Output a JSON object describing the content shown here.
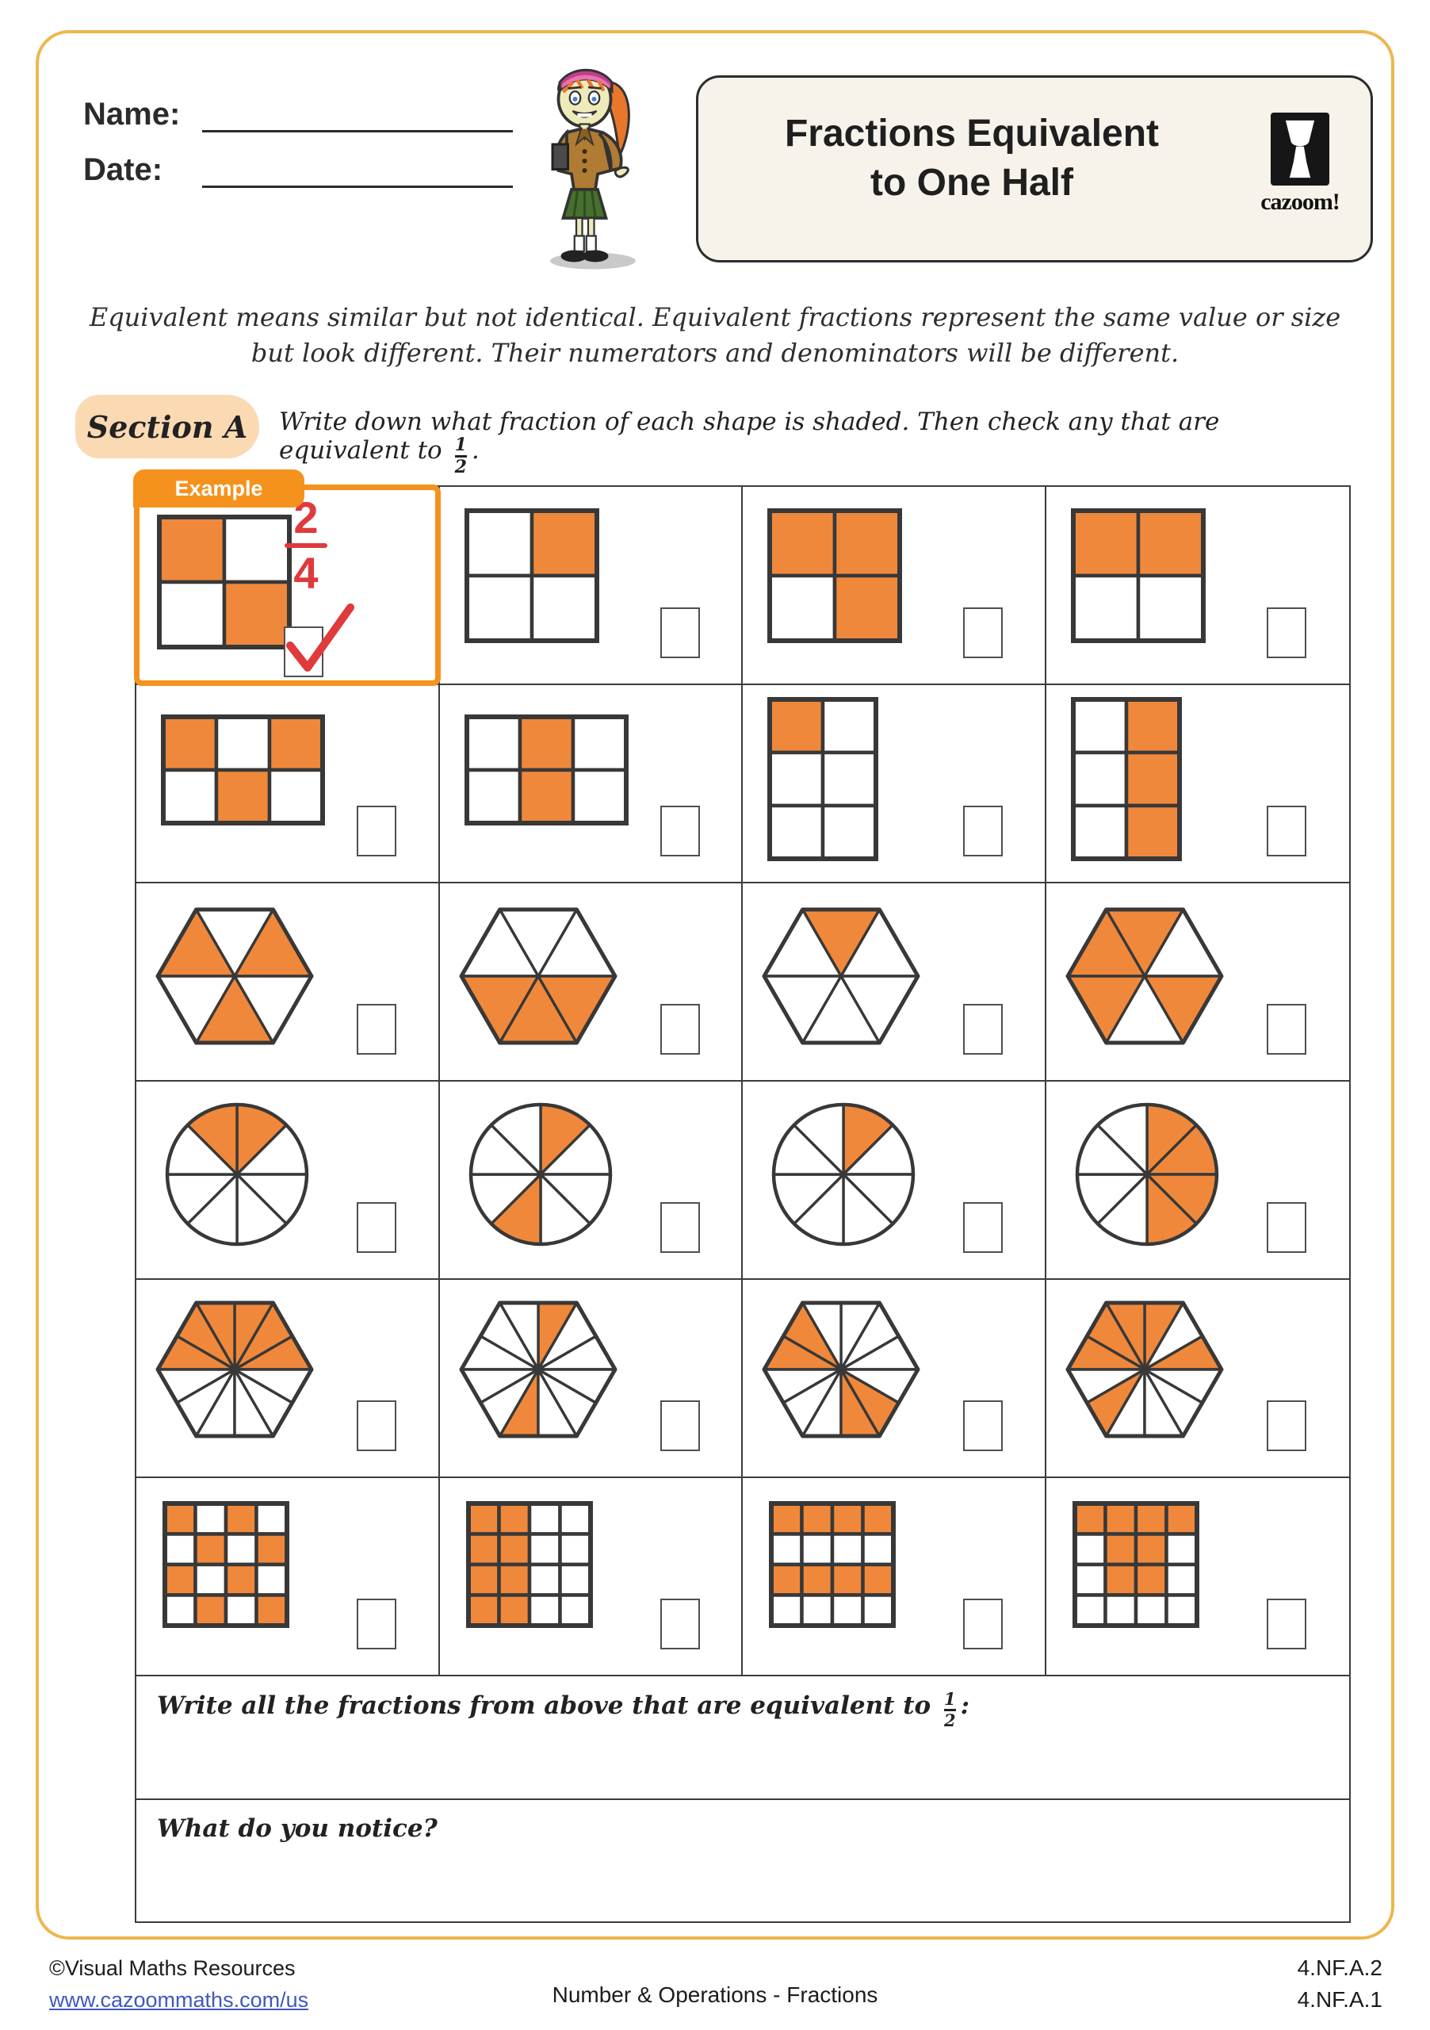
{
  "header": {
    "name_label": "Name:",
    "date_label": "Date:",
    "title_line1": "Fractions Equivalent",
    "title_line2": "to One Half",
    "logo_text": "cazoom!"
  },
  "intro": {
    "line1": "Equivalent means similar but not identical. Equivalent fractions represent the same value or size",
    "line2": "but look different. Their numerators and denominators will be different."
  },
  "section": {
    "label": "Section A",
    "instruction": "Write down what fraction of each shape is shaded. Then check any that are equivalent to",
    "fraction_num": "1",
    "fraction_den": "2",
    "suffix": "."
  },
  "example": {
    "label": "Example",
    "answer_num": "2",
    "answer_den": "4",
    "checkbox": "checked"
  },
  "colors": {
    "shape_orange": "#F0883B",
    "example_orange": "#F5921E",
    "mark_red": "#DF3A3C",
    "page_border_gold": "#EDB74D",
    "section_peach": "#FBD9B3",
    "title_cream": "#F7F3EB",
    "line_dark": "#3c3c3c",
    "link_blue": "#4059BE"
  },
  "worksheet": {
    "rows": [
      {
        "cells": [
          {
            "shape": "grid",
            "cols": 2,
            "rows": 2,
            "shaded": [
              0,
              3
            ],
            "fraction": "2/4",
            "example": true,
            "answer_num": "2",
            "answer_den": "4",
            "checkbox": "checked"
          },
          {
            "shape": "grid",
            "cols": 2,
            "rows": 2,
            "shaded": [
              1
            ],
            "fraction": "1/4",
            "checkbox": "empty"
          },
          {
            "shape": "grid",
            "cols": 2,
            "rows": 2,
            "shaded": [
              0,
              1,
              3
            ],
            "fraction": "3/4",
            "checkbox": "empty"
          },
          {
            "shape": "grid",
            "cols": 2,
            "rows": 2,
            "shaded": [
              0,
              1
            ],
            "fraction": "2/4",
            "checkbox": "empty"
          }
        ]
      },
      {
        "cells": [
          {
            "shape": "grid",
            "cols": 3,
            "rows": 2,
            "shaded": [
              0,
              2,
              4
            ],
            "fraction": "3/6",
            "checkbox": "empty"
          },
          {
            "shape": "grid",
            "cols": 3,
            "rows": 2,
            "shaded": [
              1,
              4
            ],
            "fraction": "2/6",
            "checkbox": "empty"
          },
          {
            "shape": "grid",
            "cols": 2,
            "rows": 3,
            "shaded": [
              0
            ],
            "fraction": "1/6",
            "checkbox": "empty"
          },
          {
            "shape": "grid",
            "cols": 2,
            "rows": 3,
            "shaded": [
              1,
              3,
              5
            ],
            "fraction": "3/6",
            "checkbox": "empty"
          }
        ]
      },
      {
        "cells": [
          {
            "shape": "hex",
            "segments": 6,
            "shaded": [
              0,
              2,
              4
            ],
            "fraction": "3/6",
            "checkbox": "empty"
          },
          {
            "shape": "hex",
            "segments": 6,
            "shaded": [
              3,
              4,
              5
            ],
            "fraction": "3/6",
            "checkbox": "empty"
          },
          {
            "shape": "hex",
            "segments": 6,
            "shaded": [
              1
            ],
            "fraction": "1/6",
            "checkbox": "empty"
          },
          {
            "shape": "hex",
            "segments": 6,
            "shaded": [
              1,
              2,
              3,
              5
            ],
            "fraction": "4/6",
            "checkbox": "empty"
          }
        ]
      },
      {
        "cells": [
          {
            "shape": "circle",
            "segments": 8,
            "shaded": [
              0,
              7
            ],
            "fraction": "2/8",
            "checkbox": "empty"
          },
          {
            "shape": "circle",
            "segments": 8,
            "shaded": [
              0,
              4
            ],
            "fraction": "2/8",
            "checkbox": "empty"
          },
          {
            "shape": "circle",
            "segments": 8,
            "shaded": [
              0
            ],
            "fraction": "1/8",
            "checkbox": "empty"
          },
          {
            "shape": "circle",
            "segments": 8,
            "shaded": [
              0,
              1,
              2,
              3
            ],
            "fraction": "4/8",
            "checkbox": "empty"
          }
        ]
      },
      {
        "cells": [
          {
            "shape": "hex",
            "segments": 12,
            "shaded": [
              0,
              1,
              2,
              3,
              4,
              5
            ],
            "fraction": "6/12",
            "checkbox": "empty"
          },
          {
            "shape": "hex",
            "segments": 12,
            "shaded": [
              2,
              8
            ],
            "fraction": "2/12",
            "checkbox": "empty"
          },
          {
            "shape": "hex",
            "segments": 12,
            "shaded": [
              4,
              5,
              9,
              10
            ],
            "fraction": "4/12",
            "checkbox": "empty"
          },
          {
            "shape": "hex",
            "segments": 12,
            "shaded": [
              0,
              2,
              3,
              4,
              5,
              7
            ],
            "fraction": "6/12",
            "checkbox": "empty"
          }
        ]
      },
      {
        "cells": [
          {
            "shape": "grid",
            "cols": 4,
            "rows": 4,
            "shaded": [
              0,
              2,
              5,
              7,
              8,
              10,
              13,
              15
            ],
            "fraction": "8/16",
            "checkbox": "empty"
          },
          {
            "shape": "grid",
            "cols": 4,
            "rows": 4,
            "shaded": [
              0,
              1,
              4,
              5,
              8,
              9,
              12,
              13
            ],
            "fraction": "8/16",
            "checkbox": "empty"
          },
          {
            "shape": "grid",
            "cols": 4,
            "rows": 4,
            "shaded": [
              0,
              1,
              2,
              3,
              8,
              9,
              10,
              11
            ],
            "fraction": "8/16",
            "checkbox": "empty"
          },
          {
            "shape": "grid",
            "cols": 4,
            "rows": 4,
            "shaded": [
              0,
              1,
              2,
              3,
              5,
              6,
              9,
              10
            ],
            "fraction": "8/16",
            "checkbox": "empty"
          }
        ]
      }
    ],
    "q1_prefix": "Write all the fractions from above that are equivalent to",
    "q1_fraction_num": "1",
    "q1_fraction_den": "2",
    "q1_suffix": ":",
    "q2_text": "What do you notice?"
  },
  "footer": {
    "copyright": "©Visual Maths Resources",
    "url": "www.cazoommaths.com/us",
    "center": "Number & Operations - Fractions",
    "standard1": "4.NF.A.2",
    "standard2": "4.NF.A.1"
  }
}
